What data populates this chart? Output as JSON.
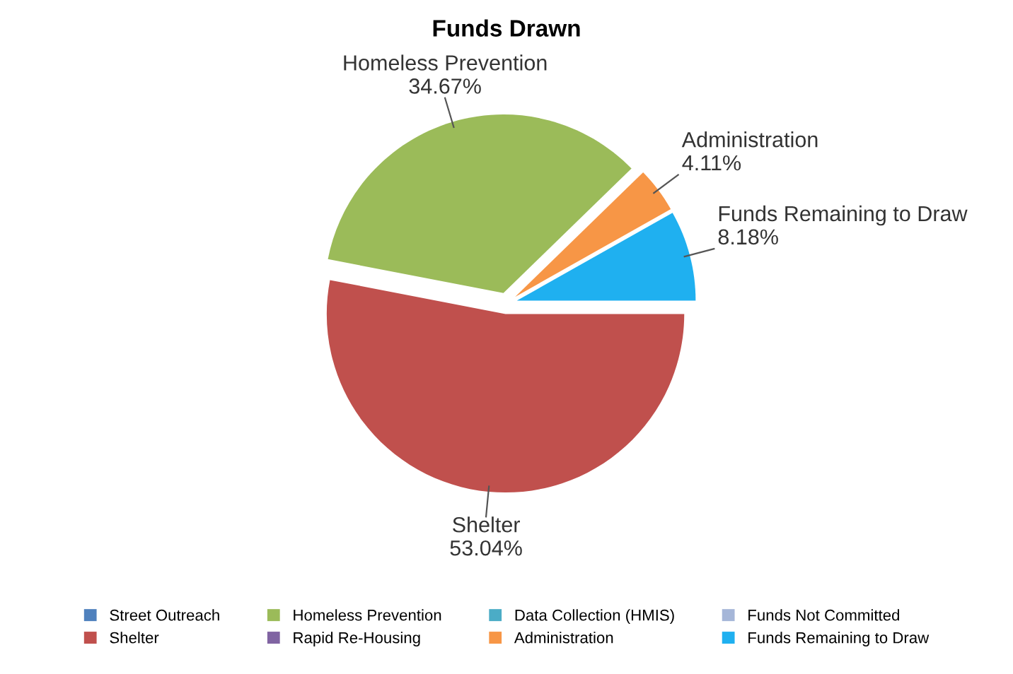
{
  "chart_data": {
    "type": "pie",
    "title": "Funds Drawn",
    "categories": [
      "Street Outreach",
      "Shelter",
      "Homeless Prevention",
      "Rapid Re-Housing",
      "Data Collection (HMIS)",
      "Administration",
      "Funds Not Committed",
      "Funds Remaining to Draw"
    ],
    "values": [
      0,
      53.04,
      34.67,
      0,
      0,
      4.11,
      0,
      8.18
    ],
    "value_labels": [
      null,
      "53.04%",
      "34.67%",
      null,
      null,
      "4.11%",
      null,
      "8.18%"
    ],
    "colors": [
      "#4f81bd",
      "#c0504d",
      "#9bbb59",
      "#8064a2",
      "#4bacc6",
      "#f79646",
      "#a5b6d8",
      "#1fb0f0"
    ],
    "legend": "bottom"
  }
}
